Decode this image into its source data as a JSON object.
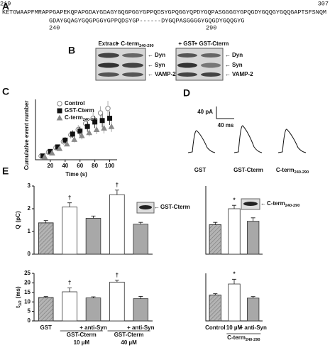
{
  "panel_labels": [
    "A",
    "B",
    "C",
    "D",
    "E"
  ],
  "sequence": {
    "start": "219",
    "end": "307",
    "line1": "KETGWAAPFMRAPPGAPEKQPAPGDAYGDAGYGQGPGGYGPPQDSYGPQGGYQPDYGQPASGGGGYGPQGDYGQQGYGQQGAPTSFSNQM",
    "line2": "GDAYGQAGYGQGPGGYGPPQDSYGP------DYGQPASGGGGYGQGDYGQQGYG",
    "line2_start": "240",
    "line2_end": "290"
  },
  "blots": {
    "headers": [
      {
        "text": "Extract"
      },
      {
        "text": "+ C-term",
        "sub": "240-290"
      },
      {
        "text": "+ GST"
      },
      {
        "text": "+ GST-Cterm"
      }
    ],
    "rows": [
      "Dyn",
      "Syn",
      "VAMP-2"
    ]
  },
  "traces": {
    "scale_current": "40 pA",
    "scale_time": "40 ms",
    "labels": [
      {
        "text": "GST"
      },
      {
        "text": "GST-Cterm"
      },
      {
        "text": "C-term",
        "sub": "240-290"
      }
    ]
  },
  "chart_data": [
    {
      "type": "scatter",
      "x_label": "Time (s)",
      "y_label": "Cumulative event number",
      "x": [
        10,
        20,
        30,
        40,
        50,
        60,
        70,
        80,
        90,
        100
      ],
      "xlim": [
        0,
        110
      ],
      "xticks": [
        20,
        40,
        60,
        80,
        100
      ],
      "ylim": [
        0,
        80
      ],
      "legend": "upper left",
      "series": [
        {
          "name": {
            "text": "Control"
          },
          "marker": "circle",
          "color": "#c8c8c8",
          "values": [
            5,
            10,
            16,
            24,
            33,
            40,
            48,
            55,
            62,
            68
          ],
          "errors": [
            1,
            2,
            3,
            4,
            5,
            6,
            7,
            8,
            9,
            10
          ]
        },
        {
          "name": {
            "text": "GST-Cterm"
          },
          "marker": "square",
          "color": "#111111",
          "values": [
            5,
            11,
            17,
            26,
            34,
            38,
            44,
            50,
            52,
            55
          ],
          "errors": [
            1,
            2,
            3,
            4,
            5,
            6,
            7,
            8,
            9,
            9
          ]
        },
        {
          "name": {
            "text": "C-term",
            "sub": "240-290"
          },
          "marker": "triangle",
          "color": "#8a8a8a",
          "values": [
            4,
            9,
            15,
            21,
            27,
            32,
            36,
            40,
            42,
            44
          ],
          "errors": [
            1,
            2,
            2,
            3,
            4,
            5,
            5,
            6,
            7,
            7
          ]
        }
      ]
    },
    {
      "type": "bar",
      "y_label": {
        "text": "Q",
        "unit": "(pC)"
      },
      "ylim": [
        0,
        3
      ],
      "yticks": [
        0,
        1,
        2,
        3
      ],
      "values": [
        1.38,
        2.08,
        1.58,
        2.62,
        1.32
      ],
      "errors": [
        0.1,
        0.18,
        0.1,
        0.2,
        0.08
      ],
      "colors": [
        "#b4b4b4",
        "#ffffff",
        "#a8a8a8",
        "#ffffff",
        "#a8a8a8"
      ],
      "hatched": [
        true,
        false,
        false,
        false,
        false
      ],
      "markers": [
        null,
        "†",
        null,
        "†",
        null
      ],
      "inset_label": {
        "text": "GST-Cterm"
      }
    },
    {
      "type": "bar",
      "ylim": [
        0,
        3
      ],
      "values": [
        1.3,
        2.0,
        1.45
      ],
      "errors": [
        0.1,
        0.15,
        0.15
      ],
      "colors": [
        "#b4b4b4",
        "#ffffff",
        "#a8a8a8"
      ],
      "hatched": [
        true,
        false,
        false
      ],
      "markers": [
        null,
        "*",
        null
      ],
      "inset_label": {
        "text": "C-term",
        "sub": "240-290"
      }
    },
    {
      "type": "bar",
      "y_label": {
        "text": "t",
        "sub": "1/2",
        "unit": "(ms)"
      },
      "ylim": [
        0,
        25
      ],
      "yticks": [
        0,
        5,
        10,
        15,
        20,
        25
      ],
      "values": [
        12.3,
        15.3,
        12.1,
        20.4,
        11.7
      ],
      "errors": [
        0.5,
        2,
        0.6,
        1,
        1.2
      ],
      "colors": [
        "#b4b4b4",
        "#ffffff",
        "#a8a8a8",
        "#ffffff",
        "#a8a8a8"
      ],
      "hatched": [
        true,
        false,
        false,
        false,
        false
      ],
      "markers": [
        null,
        "†",
        null,
        "†",
        null
      ],
      "categories": [
        "GST",
        null,
        "+ anti-Syn",
        null,
        "+ anti-Syn"
      ],
      "group_labels": [
        null,
        {
          "text": "GST-Cterm",
          "detail": "10 µM"
        },
        null,
        {
          "text": "GST-Cterm",
          "detail": "40 µM"
        },
        null
      ]
    },
    {
      "type": "bar",
      "ylim": [
        0,
        25
      ],
      "values": [
        13.6,
        19.4,
        12.0
      ],
      "errors": [
        0.7,
        2.5,
        0.8
      ],
      "colors": [
        "#b4b4b4",
        "#ffffff",
        "#a8a8a8"
      ],
      "hatched": [
        true,
        false,
        false
      ],
      "markers": [
        null,
        "*",
        null
      ],
      "categories": [
        "Control",
        "10 µM",
        "+ anti-Syn"
      ],
      "group_labels": [
        null,
        {
          "text": "C-term",
          "sub": "240-290"
        },
        null
      ]
    }
  ]
}
